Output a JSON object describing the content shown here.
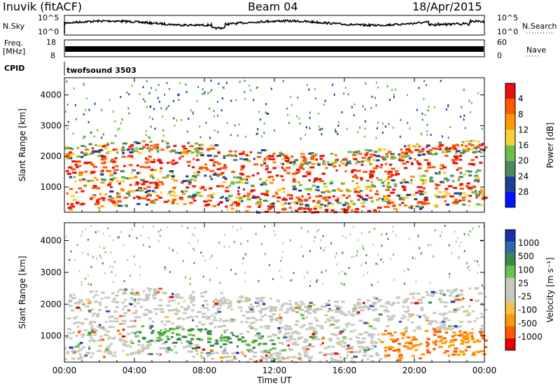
{
  "header": {
    "station": "Inuvik (fitACF)",
    "beam": "Beam 04",
    "date": "18/Apr/2015"
  },
  "panel_labels": {
    "nsky": "N.Sky",
    "nsearch": "N.Search",
    "freq_line1": "Freq.",
    "freq_line2": "[MHz]",
    "nave": "Nave",
    "cpid": "CPID",
    "program": "twofsound 3503",
    "noise_ticks": [
      "10^5",
      "10^0"
    ],
    "freq_ticks": [
      "18",
      "8"
    ],
    "nave_ticks": [
      "60",
      "0"
    ]
  },
  "colors": {
    "power": [
      "#0015ff",
      "#1d3d96",
      "#4a8a60",
      "#6ac04a",
      "#f5d23c",
      "#ff9a00",
      "#ff5a00",
      "#e81010"
    ],
    "velocity": [
      "#e80000",
      "#ff5a00",
      "#ff9a00",
      "#f5c04a",
      "#c8c8c0",
      "#c8c8c0",
      "#6ac04a",
      "#3a8a4a",
      "#2f6aa8",
      "#1a2fb0"
    ]
  },
  "chart_data": [
    {
      "type": "heatmap",
      "title": "Power",
      "ylabel": "Slant Range [km]",
      "xlabel": "",
      "x_ticks": [
        "00:00",
        "04:00",
        "08:00",
        "12:00",
        "16:00",
        "20:00",
        "00:00"
      ],
      "xlim_hours": [
        0,
        24
      ],
      "y_ticks": [
        "1000",
        "2000",
        "3000",
        "4000"
      ],
      "ylim": [
        180,
        4560
      ],
      "colorbar_label": "Power [dB]",
      "colorbar_ticks": [
        "4",
        "8",
        "12",
        "16",
        "20",
        "24",
        "28"
      ]
    },
    {
      "type": "heatmap",
      "title": "Velocity",
      "ylabel": "Slant Range [km]",
      "xlabel": "Time UT",
      "x_ticks": [
        "00:00",
        "04:00",
        "08:00",
        "12:00",
        "16:00",
        "20:00",
        "00:00"
      ],
      "xlim_hours": [
        0,
        24
      ],
      "y_ticks": [
        "1000",
        "2000",
        "3000",
        "4000"
      ],
      "ylim": [
        180,
        4560
      ],
      "colorbar_label": "Velocity [m s⁻¹]",
      "colorbar_ticks": [
        "1000",
        "500",
        "100",
        "25",
        "-25",
        "-100",
        "-500",
        "-1000"
      ]
    }
  ]
}
